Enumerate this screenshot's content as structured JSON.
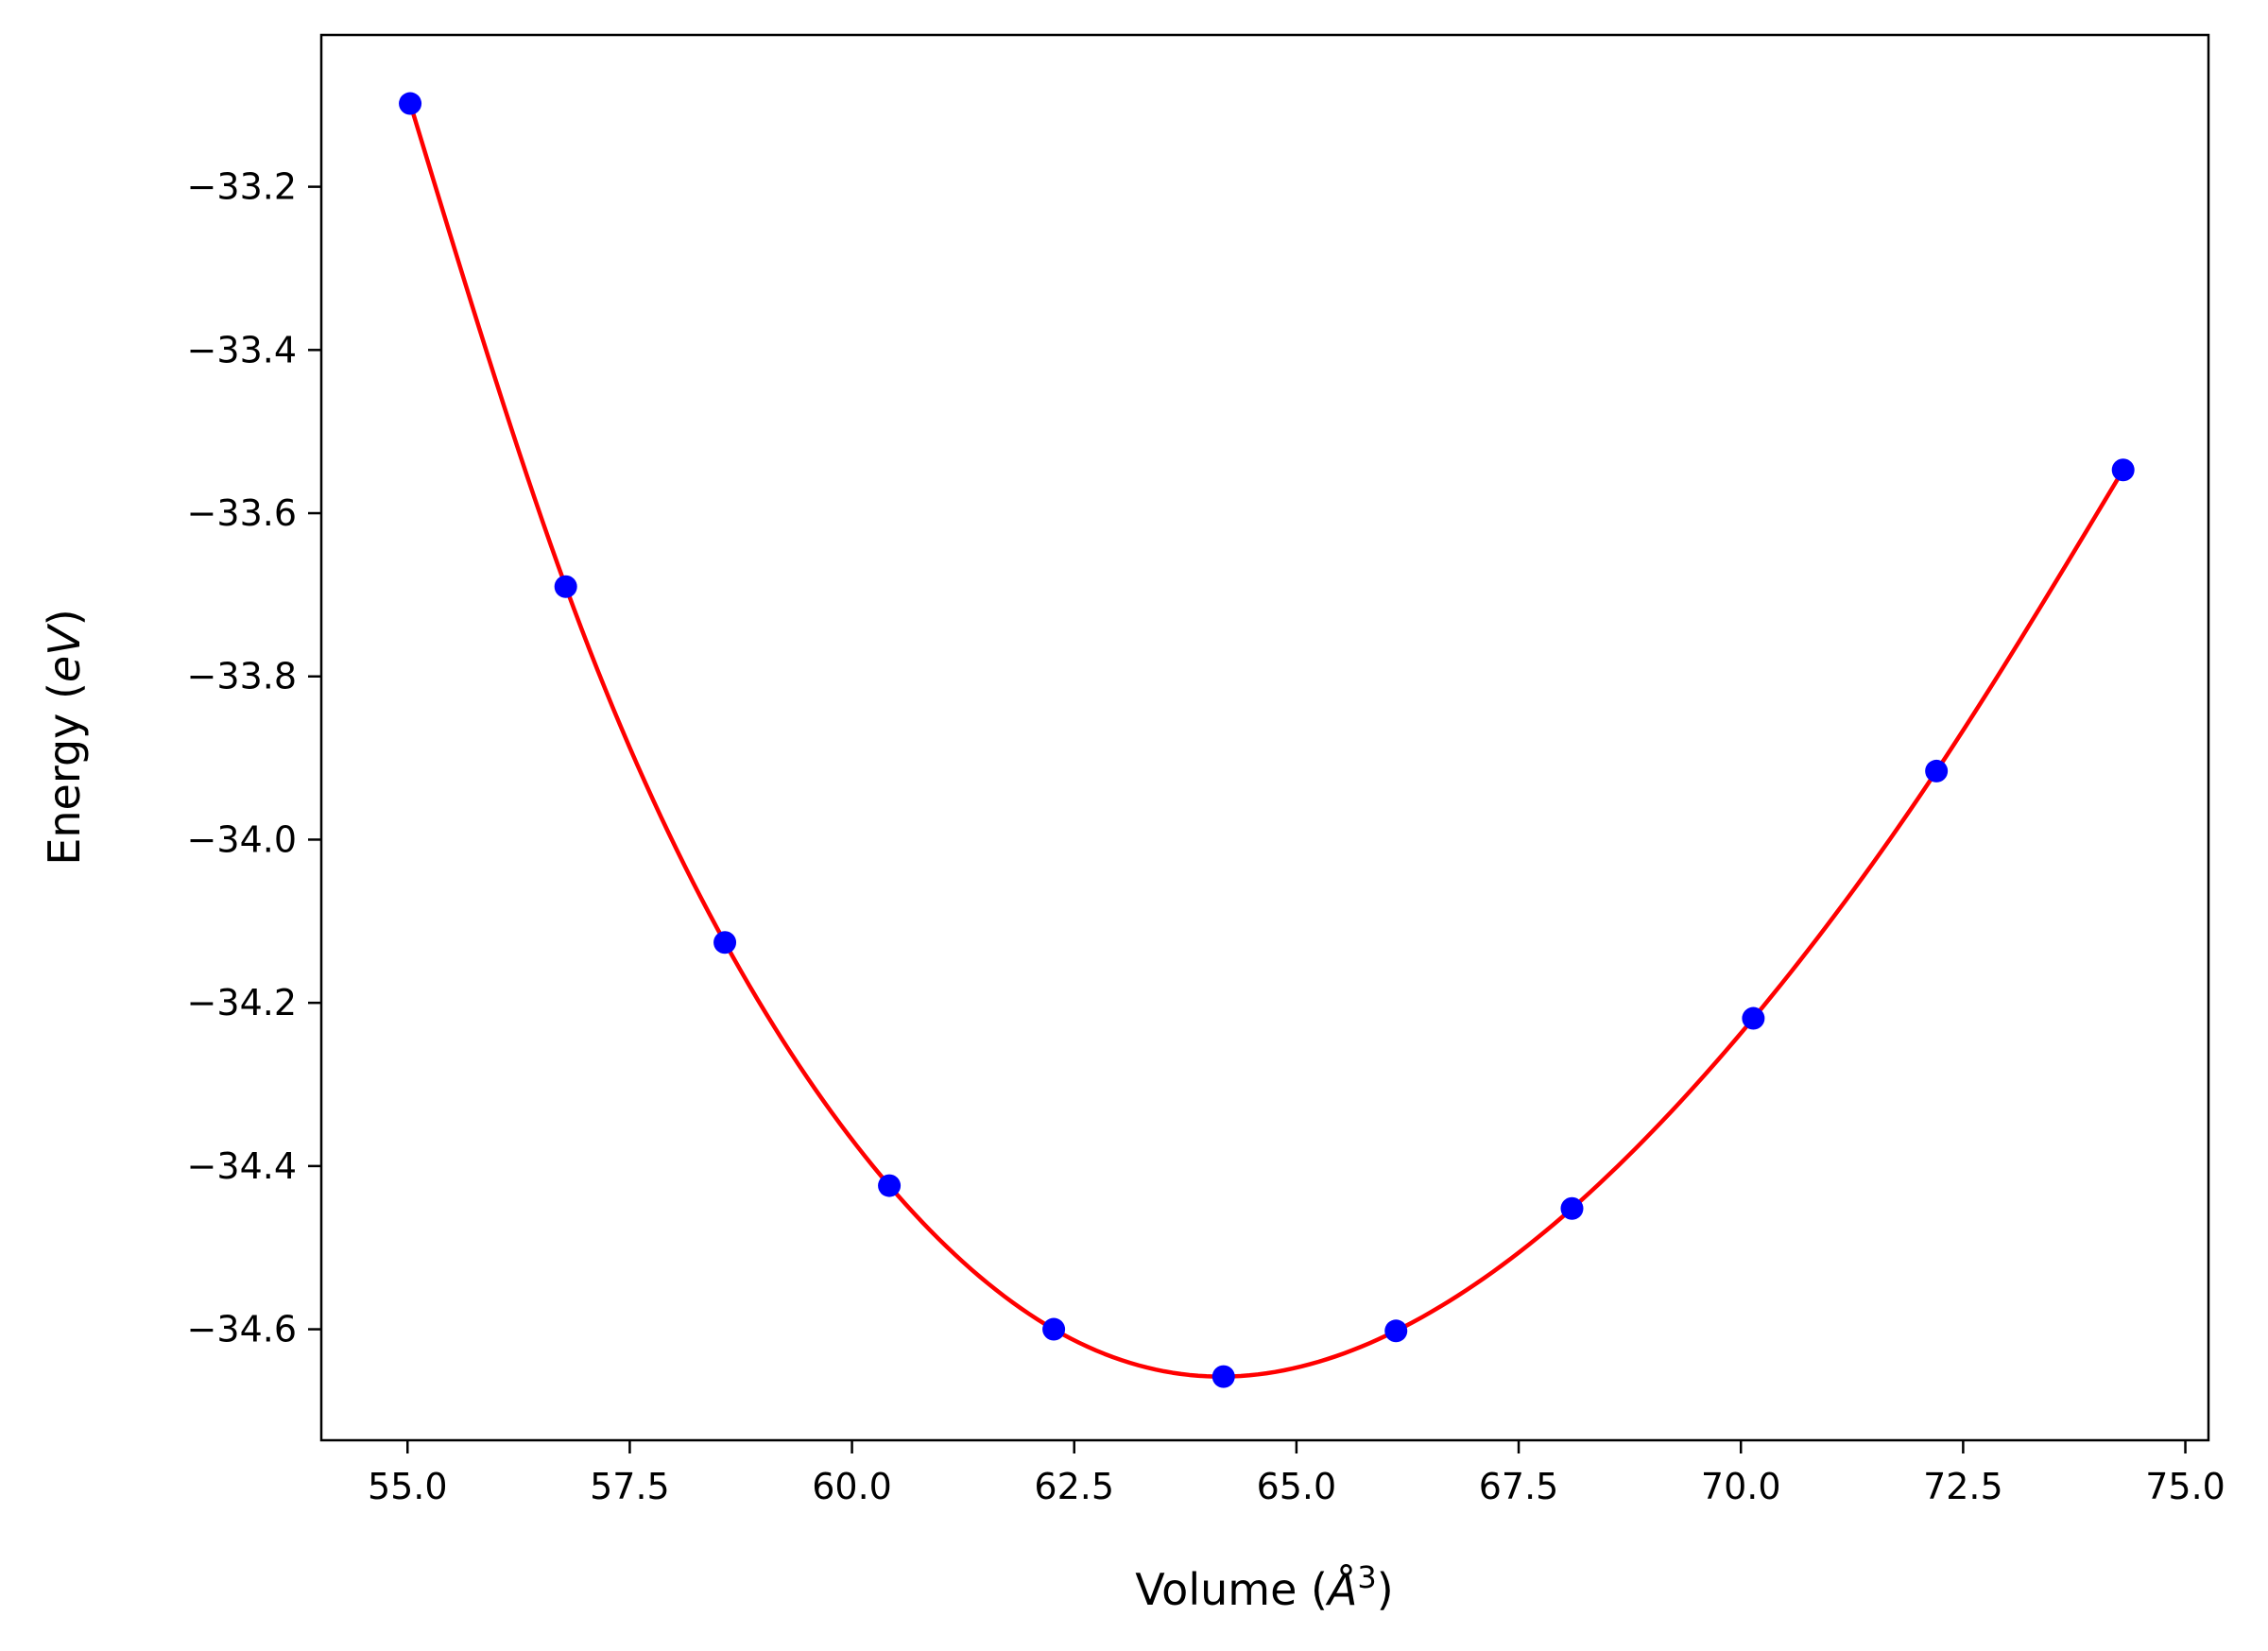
{
  "chart_data": {
    "type": "scatter",
    "title": "",
    "xlabel_main": "Volume (",
    "xlabel_unit": "Å",
    "xlabel_exp": "3",
    "xlabel_close": ")",
    "ylabel_main": "Energy (",
    "ylabel_unit": "eV",
    "ylabel_close": ")",
    "xlim": [
      54.03,
      75.26
    ],
    "ylim": [
      -34.736,
      -33.014
    ],
    "xticks": [
      55.0,
      57.5,
      60.0,
      62.5,
      65.0,
      67.5,
      70.0,
      72.5,
      75.0
    ],
    "xtick_labels": [
      "55.0",
      "57.5",
      "60.0",
      "62.5",
      "65.0",
      "67.5",
      "70.0",
      "72.5",
      "75.0"
    ],
    "yticks": [
      -33.2,
      -33.4,
      -33.6,
      -33.8,
      -34.0,
      -34.2,
      -34.4,
      -34.6
    ],
    "ytick_labels": [
      "−33.2",
      "−33.4",
      "−33.6",
      "−33.8",
      "−34.0",
      "−34.2",
      "−34.4",
      "−34.6"
    ],
    "grid": false,
    "series": [
      {
        "kind": "points",
        "color": "#0000ff",
        "x": [
          55.03,
          56.78,
          58.57,
          60.42,
          62.27,
          64.18,
          66.12,
          68.1,
          70.14,
          72.2,
          74.3
        ],
        "y": [
          -33.098,
          -33.69,
          -34.126,
          -34.424,
          -34.6,
          -34.658,
          -34.602,
          -34.452,
          -34.219,
          -33.916,
          -33.547
        ]
      },
      {
        "kind": "fit-line",
        "color": "#ff0000",
        "x": [
          55.03,
          56.78,
          58.57,
          60.42,
          62.27,
          64.18,
          66.12,
          68.1,
          70.14,
          72.2,
          74.3
        ],
        "y": [
          -33.098,
          -33.69,
          -34.126,
          -34.424,
          -34.6,
          -34.658,
          -34.602,
          -34.452,
          -34.219,
          -33.916,
          -33.547
        ]
      }
    ]
  }
}
